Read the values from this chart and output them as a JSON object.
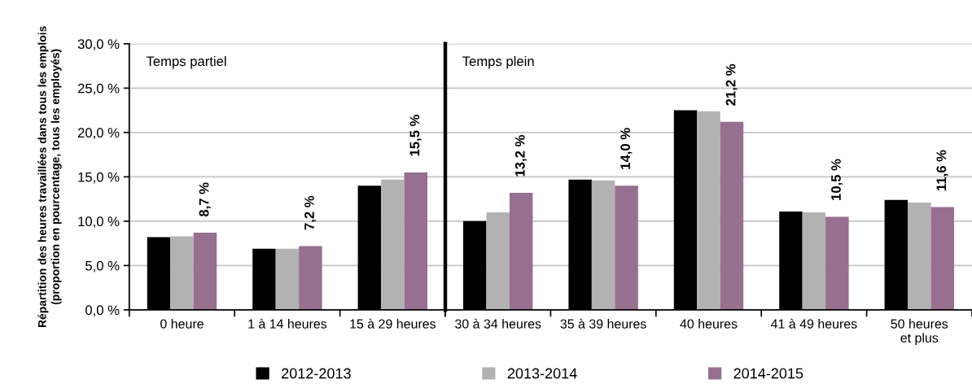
{
  "chart_data": [
    {
      "type": "bar",
      "ylabel": "Répartition des heures travaillées dans tous les emplois\n(proportion en pourcentage, tous les employés)",
      "categories": [
        "0 heure",
        "1 à 14 heures",
        "15 à 29 heures"
      ],
      "series": [
        {
          "name": "2012-2013",
          "color": "#000000",
          "values": [
            8.2,
            6.9,
            14.0
          ]
        },
        {
          "name": "2013-2014",
          "color": "#b2b2b2",
          "values": [
            8.3,
            6.9,
            14.7
          ]
        },
        {
          "name": "2014-2015",
          "color": "#976f8f",
          "values": [
            8.7,
            7.2,
            15.5
          ],
          "value_labels": [
            "8,7 %",
            "7,2 %",
            "15,5 %"
          ]
        }
      ],
      "ylim": [
        0,
        30
      ],
      "yticks": [
        {
          "value": 0,
          "label": "0,0 %"
        },
        {
          "value": 5,
          "label": "5,0 %"
        },
        {
          "value": 10,
          "label": "10,0 %"
        },
        {
          "value": 15,
          "label": "15,0 %"
        },
        {
          "value": 20,
          "label": "20,0 %"
        },
        {
          "value": 25,
          "label": "25,0 %"
        },
        {
          "value": 30,
          "label": "30,0 %"
        }
      ],
      "annotations": [
        "Temps partiel"
      ],
      "grid": "y",
      "legend": "bottom"
    },
    {
      "type": "bar",
      "categories": [
        "30 à 34 heures",
        "35 à 39 heures",
        "40 heures",
        "41 à 49 heures",
        "50 heures\net plus"
      ],
      "series": [
        {
          "color": "#000000",
          "values": [
            10.0,
            14.7,
            22.5,
            11.1,
            12.4
          ]
        },
        {
          "color": "#b2b2b2",
          "values": [
            11.0,
            14.6,
            22.4,
            11.0,
            12.1
          ]
        },
        {
          "color": "#976f8f",
          "values": [
            13.2,
            14.0,
            21.2,
            10.5,
            11.6
          ],
          "value_labels": [
            "13,2 %",
            "14,0 %",
            "21,2 %",
            "10,5 %",
            "11,6 %"
          ]
        }
      ],
      "ylim": [
        0,
        30
      ],
      "yticks": [
        0,
        5,
        10,
        15,
        20,
        25,
        30
      ],
      "tick_labels": "x",
      "annotations": [
        "Temps plein"
      ],
      "grid": "y"
    }
  ]
}
